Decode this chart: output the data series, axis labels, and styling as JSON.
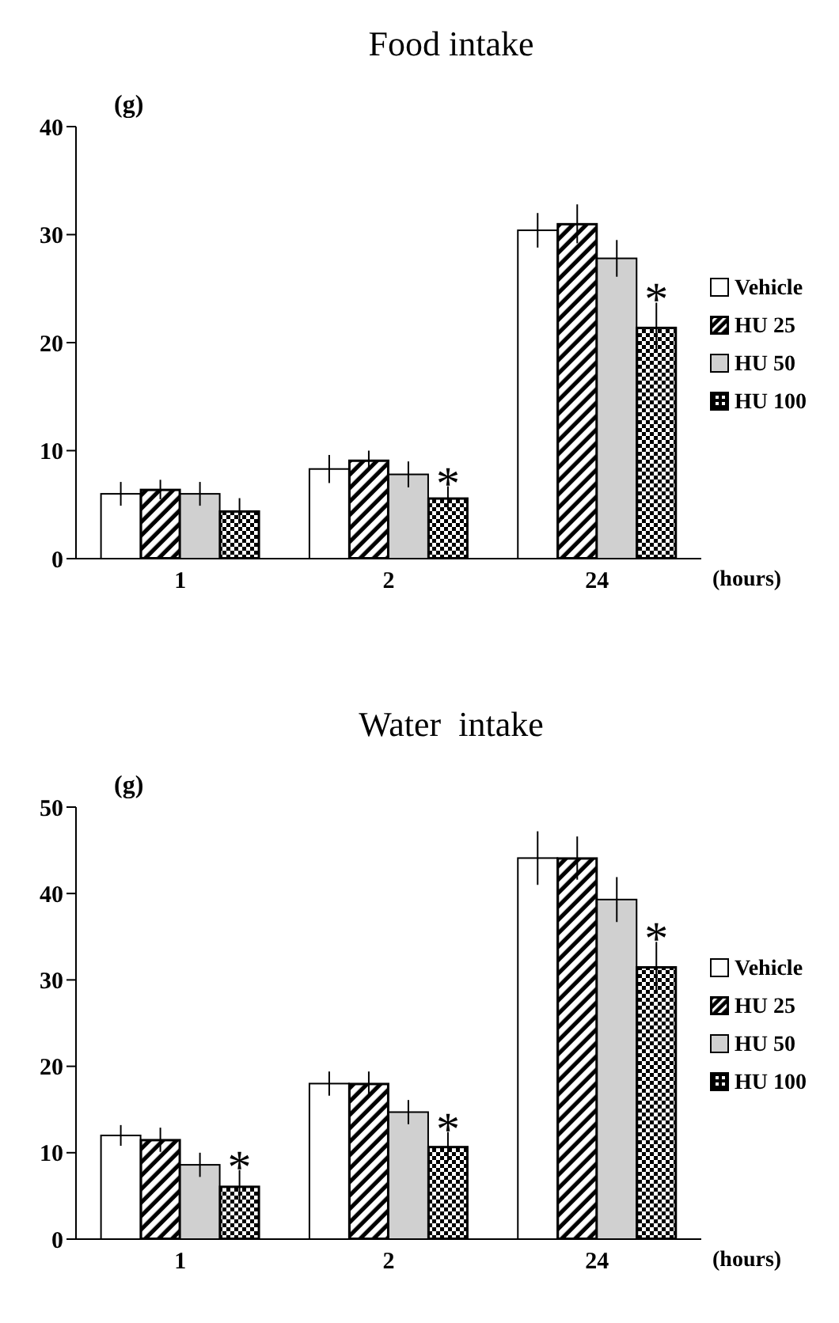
{
  "chart_data": [
    {
      "type": "bar",
      "title": "Food intake",
      "ylabel": "(g)",
      "xlabel": "(hours)",
      "categories": [
        "1",
        "2",
        "24"
      ],
      "ylim": [
        0,
        40
      ],
      "yticks": [
        0,
        10,
        20,
        30,
        40
      ],
      "legend": "right",
      "series": [
        {
          "name": "Vehicle",
          "color": "#ffffff",
          "values": [
            6.0,
            8.3,
            30.4
          ],
          "errors": [
            1.1,
            1.3,
            1.6
          ]
        },
        {
          "name": "HU 25",
          "color": "#000000",
          "values": [
            6.4,
            9.1,
            31.0
          ],
          "errors": [
            0.9,
            0.9,
            1.8
          ]
        },
        {
          "name": "HU 50",
          "color": "#d0d0d0",
          "values": [
            6.0,
            7.8,
            27.8
          ],
          "errors": [
            1.1,
            1.2,
            1.7
          ]
        },
        {
          "name": "HU 100",
          "color": "#000000",
          "values": [
            4.4,
            5.6,
            21.4
          ],
          "errors": [
            1.2,
            1.1,
            2.3
          ]
        }
      ],
      "annotations": [
        {
          "text": "*",
          "x": "2",
          "y": 6.7
        },
        {
          "text": "*",
          "x": "24",
          "y": 23.7
        }
      ]
    },
    {
      "type": "bar",
      "title": "Water  intake",
      "ylabel": "(g)",
      "xlabel": "(hours)",
      "categories": [
        "1",
        "2",
        "24"
      ],
      "ylim": [
        0,
        50
      ],
      "yticks": [
        0,
        10,
        20,
        30,
        40,
        50
      ],
      "legend": "right",
      "series": [
        {
          "name": "Vehicle",
          "color": "#ffffff",
          "values": [
            12.0,
            18.0,
            44.1
          ],
          "errors": [
            1.2,
            1.4,
            3.1
          ]
        },
        {
          "name": "HU 25",
          "color": "#000000",
          "values": [
            11.5,
            18.0,
            44.1
          ],
          "errors": [
            1.4,
            1.4,
            2.5
          ]
        },
        {
          "name": "HU 50",
          "color": "#d0d0d0",
          "values": [
            8.6,
            14.7,
            39.3
          ],
          "errors": [
            1.4,
            1.4,
            2.6
          ]
        },
        {
          "name": "HU 100",
          "color": "#000000",
          "values": [
            6.1,
            10.7,
            31.5
          ],
          "errors": [
            1.9,
            1.7,
            2.9
          ]
        }
      ],
      "annotations": [
        {
          "text": "*",
          "x": "1",
          "y": 8.0
        },
        {
          "text": "*",
          "x": "2",
          "y": 12.4
        },
        {
          "text": "*",
          "x": "24",
          "y": 34.4
        }
      ]
    }
  ]
}
